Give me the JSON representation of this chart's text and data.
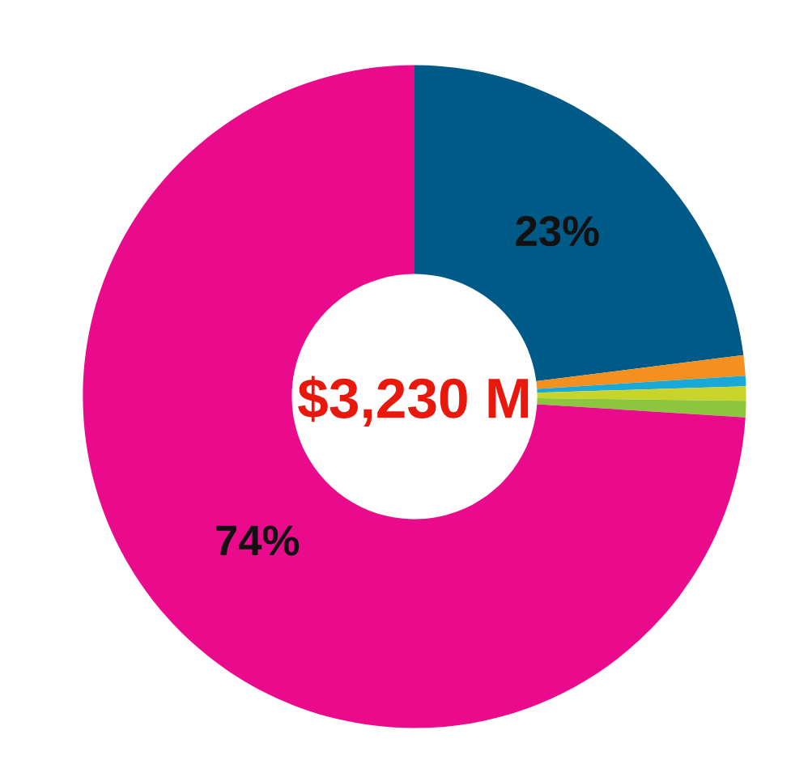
{
  "chart_data": {
    "type": "donut",
    "categories": [
      null,
      null,
      null,
      null,
      null,
      null
    ],
    "values": [
      23,
      1,
      0.5,
      0.7,
      0.8,
      74
    ],
    "colors": [
      "#005a87",
      "#f39020",
      "#1aa9d6",
      "#c8d42a",
      "#8cc63f",
      "#ea0a8c"
    ],
    "value_labels": [
      "23%",
      null,
      null,
      null,
      null,
      "74%"
    ],
    "annotations": [
      "$3,230 M"
    ]
  }
}
